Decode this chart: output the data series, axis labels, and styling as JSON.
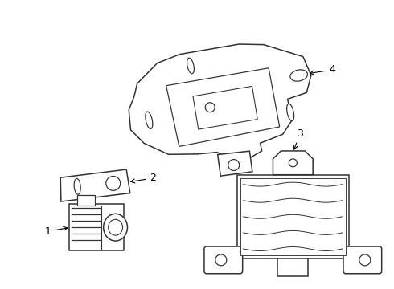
{
  "background_color": "#ffffff",
  "line_color": "#333333",
  "label_color": "#000000",
  "figure_width": 4.9,
  "figure_height": 3.6,
  "dpi": 100
}
